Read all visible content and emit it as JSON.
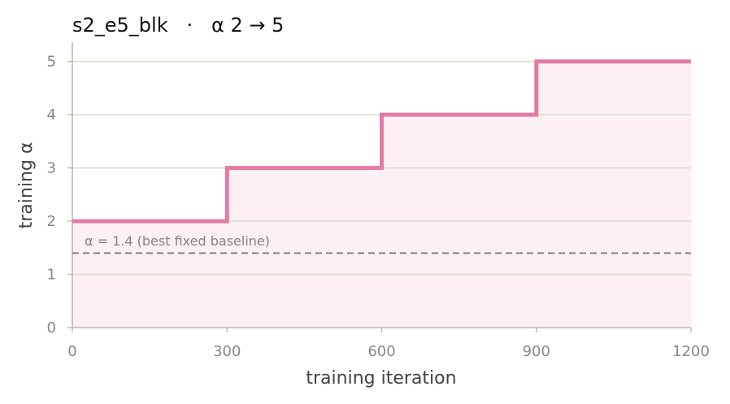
{
  "chart_data": {
    "type": "line",
    "title": "s2_e5_blk   ·   α 2 → 5",
    "xlabel": "training iteration",
    "ylabel": "training α",
    "xlim": [
      0,
      1200
    ],
    "ylim": [
      0,
      5.3
    ],
    "xticks": [
      0,
      300,
      600,
      900,
      1200
    ],
    "xtick_labels": [
      "0",
      "300",
      "600",
      "900",
      "1200"
    ],
    "yticks": [
      0,
      1,
      2,
      3,
      4,
      5
    ],
    "ytick_labels": [
      "0",
      "1",
      "2",
      "3",
      "4",
      "5"
    ],
    "grid": "horizontal",
    "step": true,
    "series": [
      {
        "x": [
          0,
          300,
          600,
          900,
          1200
        ],
        "y": [
          2,
          3,
          4,
          5,
          5
        ],
        "color": "#e37ca5",
        "fill": "#fcf0f4"
      }
    ],
    "baseline": {
      "y": 1.4,
      "label": "α = 1.4 (best fixed baseline)",
      "color": "#8a7f85",
      "style": "dashed"
    },
    "colors": {
      "grid": "#ddddcc",
      "axis": "#bbbbaa",
      "gridOverFill": "#e8d8dd"
    }
  }
}
